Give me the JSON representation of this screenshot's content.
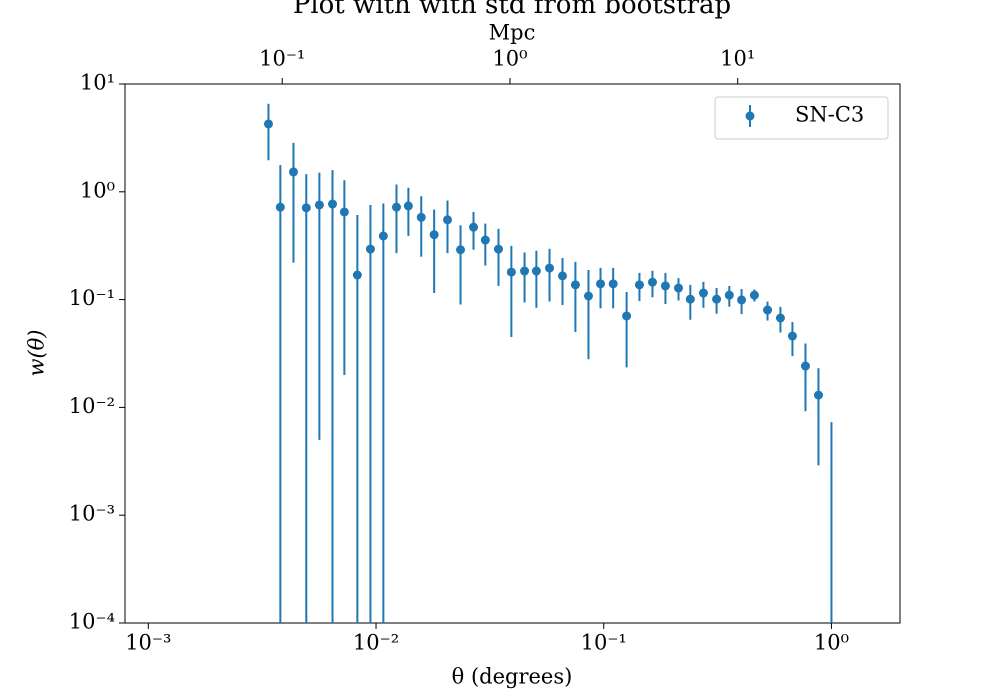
{
  "chart_data": {
    "type": "errorbar",
    "title": "Plot with with std from bootstrap",
    "x_label": "θ (degrees)",
    "y_label": "w(θ)",
    "x2_label": "Mpc",
    "log_x": true,
    "log_y": true,
    "legend": "upper right",
    "xlim": [
      0.00079,
      2.0
    ],
    "xticks": [
      {
        "value": 0.001,
        "label": "10⁻³"
      },
      {
        "value": 0.01,
        "label": "10⁻²"
      },
      {
        "value": 0.1,
        "label": "10⁻¹"
      },
      {
        "value": 1,
        "label": "10⁰"
      }
    ],
    "x2lim": [
      0.0204,
      51.6
    ],
    "x2ticks": [
      {
        "value": 0.1,
        "label": "10⁻¹"
      },
      {
        "value": 1,
        "label": "10⁰"
      },
      {
        "value": 10,
        "label": "10¹"
      }
    ],
    "ylim": [
      0.0001,
      10
    ],
    "yticks": [
      {
        "value": 10,
        "label": "10¹"
      },
      {
        "value": 1,
        "label": "10⁰"
      },
      {
        "value": 0.1,
        "label": "10⁻¹"
      },
      {
        "value": 0.01,
        "label": "10⁻²"
      },
      {
        "value": 0.001,
        "label": "10⁻³"
      },
      {
        "value": 0.0001,
        "label": "10⁻⁴"
      }
    ],
    "x": [
      0.00337,
      0.0038,
      0.00434,
      0.00494,
      0.00564,
      0.00644,
      0.00726,
      0.00828,
      0.00945,
      0.01077,
      0.0123,
      0.01387,
      0.0158,
      0.018,
      0.0206,
      0.0235,
      0.0268,
      0.0302,
      0.0345,
      0.0393,
      0.0449,
      0.0506,
      0.0578,
      0.0659,
      0.0751,
      0.0857,
      0.0968,
      0.11,
      0.126,
      0.1435,
      0.1637,
      0.1866,
      0.213,
      0.24,
      0.274,
      0.313,
      0.356,
      0.403,
      0.459,
      0.524,
      0.597,
      0.674,
      0.769,
      0.877,
      1.0
    ],
    "series": [
      {
        "name": "SN-C3",
        "color": "#1f77b4",
        "values": [
          4.26,
          0.72,
          1.53,
          0.71,
          0.755,
          0.77,
          0.65,
          0.169,
          0.294,
          0.389,
          0.72,
          0.74,
          0.58,
          0.4,
          0.55,
          0.29,
          0.47,
          0.357,
          0.294,
          0.18,
          0.184,
          0.184,
          0.196,
          0.166,
          0.137,
          0.108,
          0.14,
          0.14,
          0.0705,
          0.137,
          0.145,
          0.134,
          0.128,
          0.101,
          0.115,
          0.101,
          0.11,
          0.0993,
          0.11,
          0.08,
          0.0675,
          0.0459,
          0.0242,
          0.013,
          -0.002
        ],
        "errors": [
          2.3,
          1.05,
          1.31,
          0.75,
          0.75,
          0.82,
          0.63,
          0.44,
          0.46,
          0.39,
          0.45,
          0.35,
          0.33,
          0.285,
          0.28,
          0.2,
          0.18,
          0.15,
          0.16,
          0.135,
          0.09,
          0.1,
          0.1,
          0.077,
          0.087,
          0.08,
          0.057,
          0.057,
          0.047,
          0.04,
          0.04,
          0.043,
          0.03,
          0.036,
          0.031,
          0.027,
          0.024,
          0.026,
          0.014,
          0.016,
          0.018,
          0.016,
          0.015,
          0.0101,
          0.0093
        ]
      }
    ]
  }
}
